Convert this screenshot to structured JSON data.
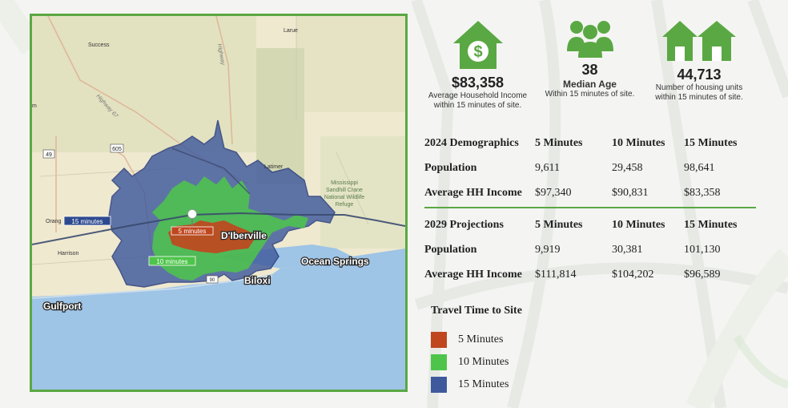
{
  "map": {
    "places": {
      "success": "Success",
      "larue": "Larue",
      "highway67": "Highway 67",
      "highway": "Highway",
      "route605": "605",
      "route49": "49",
      "latimer": "Latimer",
      "refuge": [
        "Mississippi",
        "Sandhill Crane",
        "National Wildlife",
        "Refuge"
      ],
      "orange": "Orang",
      "harrison": "Harrison",
      "diberville": "D'Iberville",
      "ocean_springs": "Ocean Springs",
      "biloxi": "Biloxi",
      "gulfport": "Gulfport",
      "route90": "90",
      "m": "m"
    },
    "labels": {
      "min15": "15 minutes",
      "min10": "10 minutes",
      "min5": "5 minutes"
    },
    "colors": {
      "min15": "#3f5a9c",
      "min10": "#4ec54a",
      "min5": "#c0461e",
      "water": "#9ec4e6",
      "land": "#efe9d0",
      "green_area": "#d4d9b4"
    }
  },
  "stats": {
    "income": {
      "value": "$83,358",
      "label_line1": "Average Household Income",
      "label_line2": "within 15 minutes of site.",
      "icon": "house-dollar-icon"
    },
    "age": {
      "value": "38",
      "sub": "Median Age",
      "label": "Within 15 minutes of site.",
      "icon": "people-icon"
    },
    "housing": {
      "value": "44,713",
      "label_line1": "Number of housing units",
      "label_line2": "within 15 minutes of site.",
      "icon": "houses-icon"
    }
  },
  "demographics_2024": {
    "header": [
      "2024 Demographics",
      "5 Minutes",
      "10 Minutes",
      "15 Minutes"
    ],
    "rows": [
      [
        "Population",
        "9,611",
        "29,458",
        "98,641"
      ],
      [
        "Average HH Income",
        "$97,340",
        "$90,831",
        "$83,358"
      ]
    ]
  },
  "projections_2029": {
    "header": [
      "2029 Projections",
      "5 Minutes",
      "10 Minutes",
      "15 Minutes"
    ],
    "rows": [
      [
        "Population",
        "9,919",
        "30,381",
        "101,130"
      ],
      [
        "Average HH Income",
        "$111,814",
        "$104,202",
        "$96,589"
      ]
    ]
  },
  "legend": {
    "title": "Travel Time to Site",
    "items": [
      {
        "label": "5 Minutes",
        "color": "#c0461e"
      },
      {
        "label": "10 Minutes",
        "color": "#4ec54a"
      },
      {
        "label": "15 Minutes",
        "color": "#3f5a9c"
      }
    ]
  },
  "accent_color": "#5aa843"
}
